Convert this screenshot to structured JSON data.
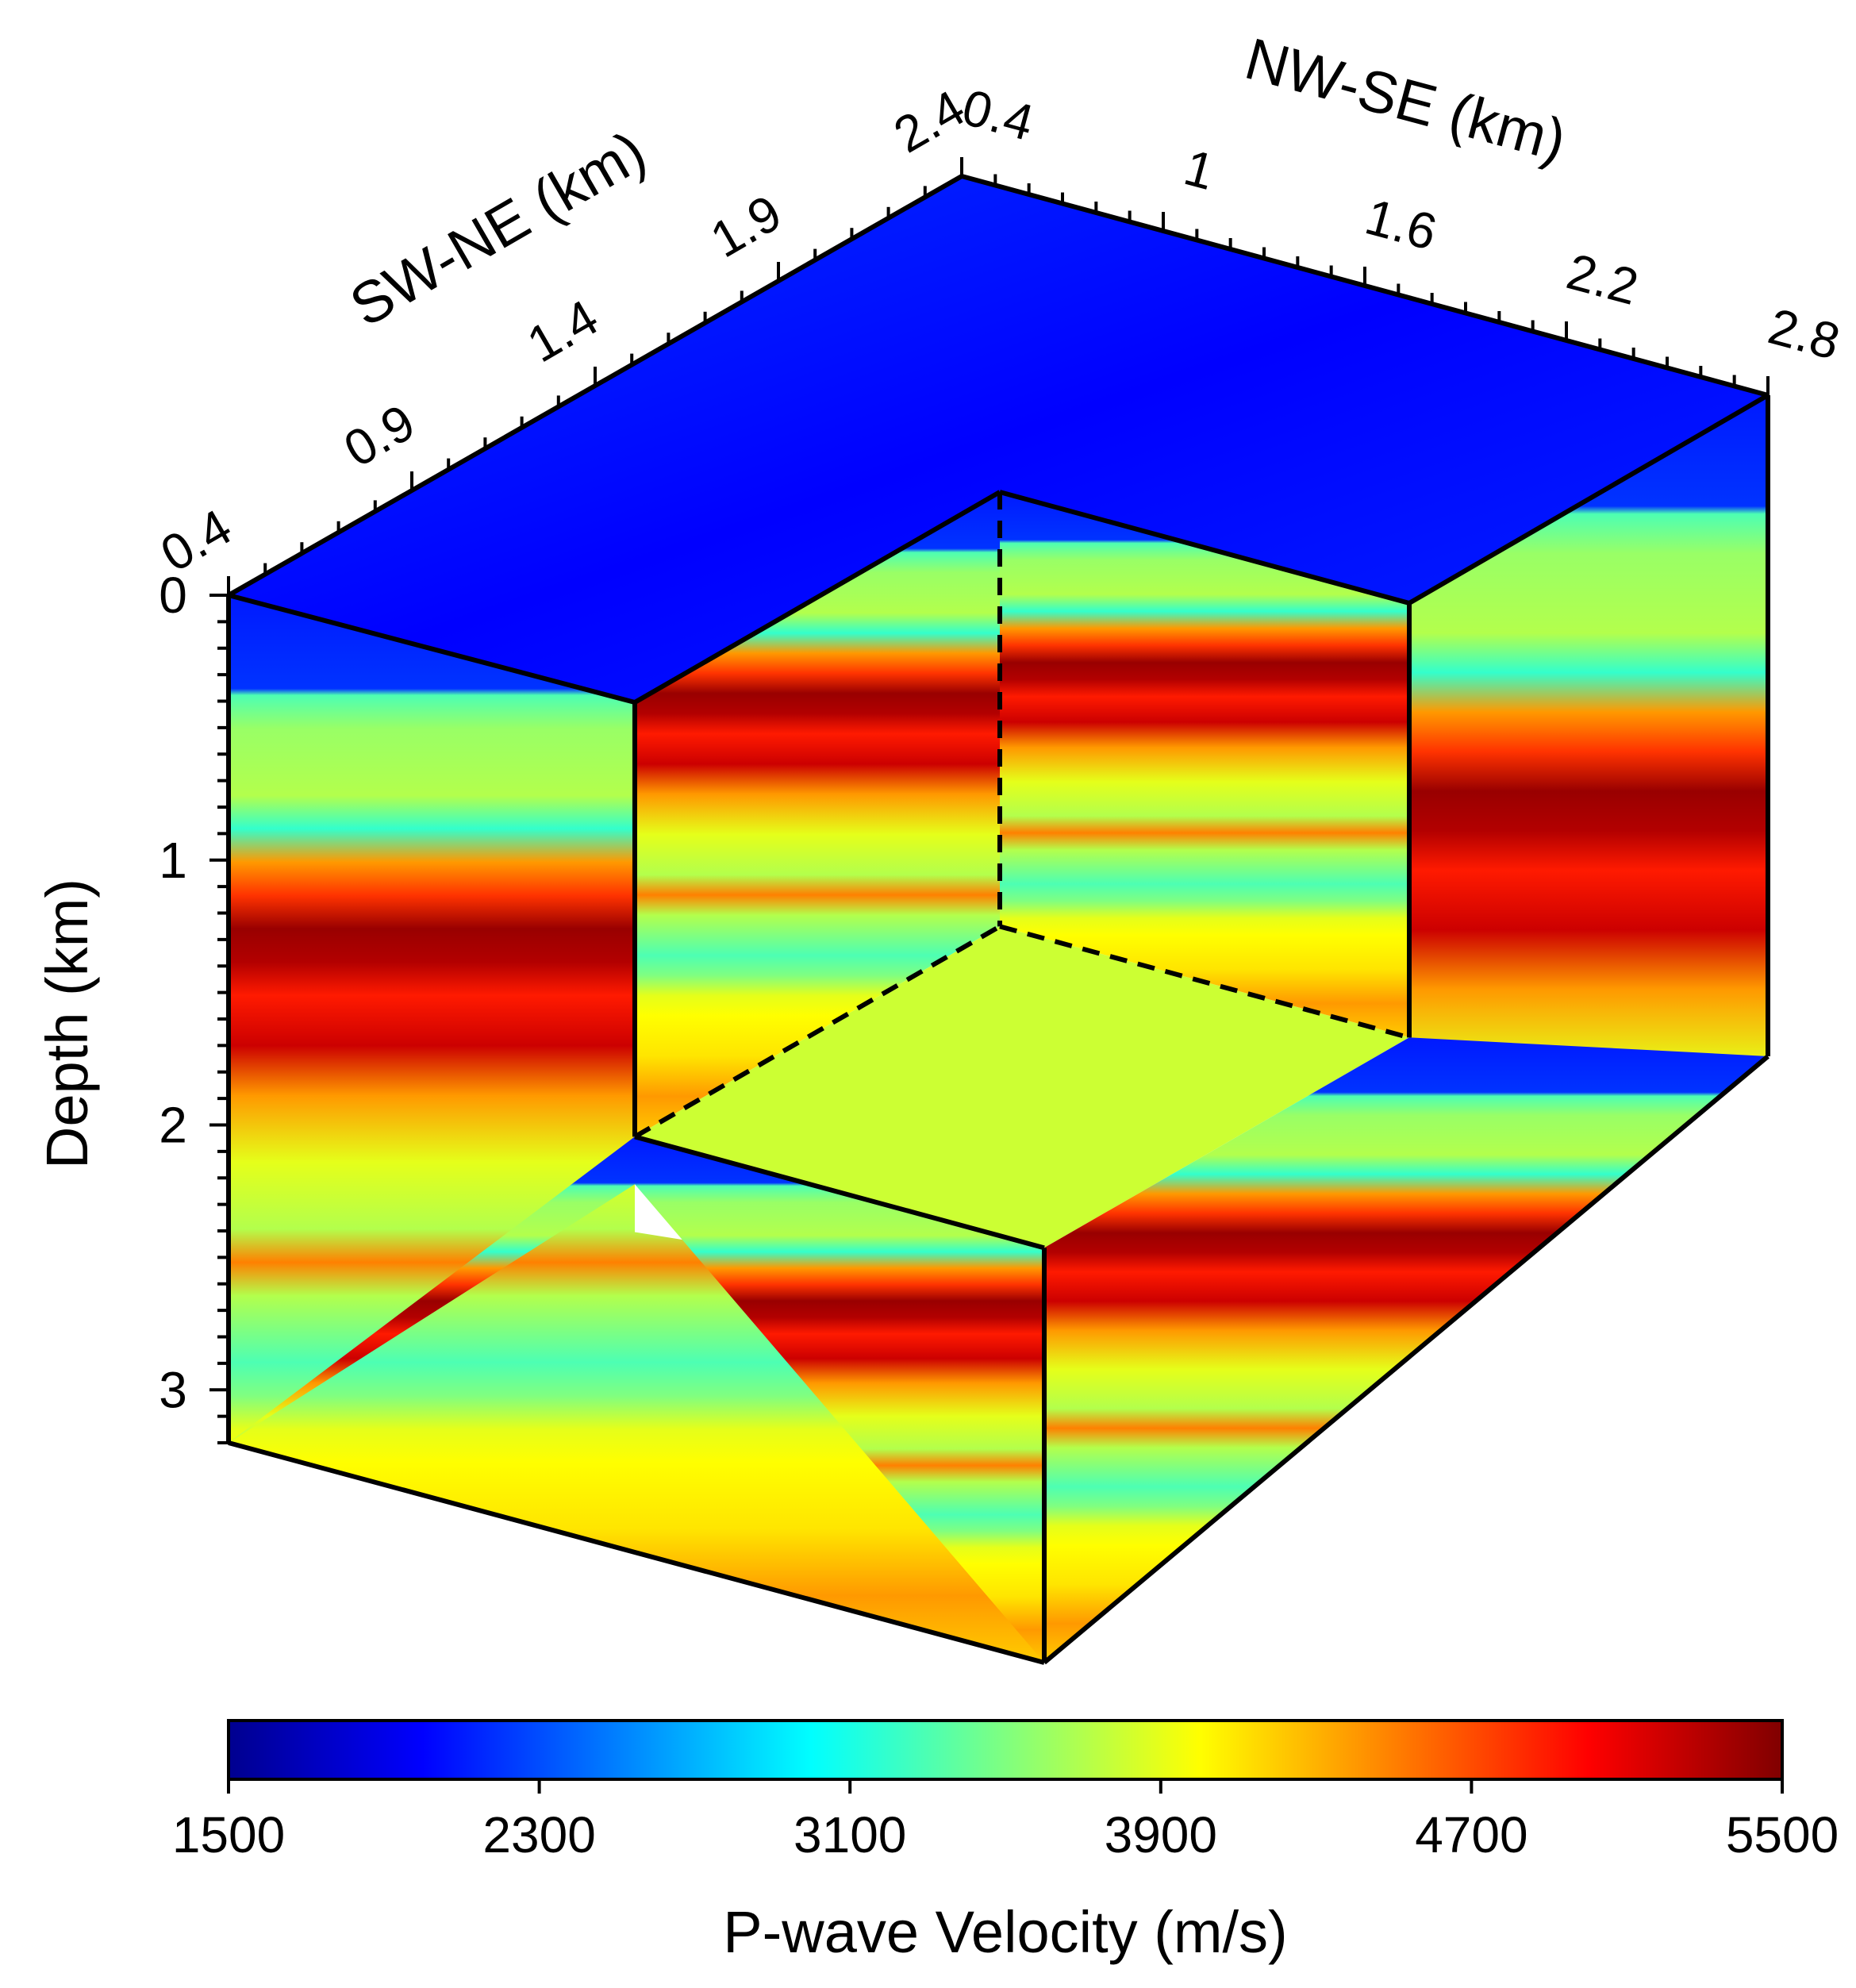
{
  "chart_data": {
    "type": "heatmap",
    "title": "",
    "axes": {
      "sw_ne": {
        "label": "SW-NE (km)",
        "ticks": [
          "0.4",
          "0.9",
          "1.4",
          "1.9",
          "2.4"
        ],
        "range": [
          0.4,
          2.4
        ]
      },
      "nw_se": {
        "label": "NW-SE (km)",
        "ticks": [
          "0.4",
          "1",
          "1.6",
          "2.2",
          "2.8"
        ],
        "range": [
          0.4,
          2.8
        ]
      },
      "depth": {
        "label": "Depth (km)",
        "ticks": [
          "0",
          "1",
          "2",
          "3"
        ],
        "range": [
          0,
          3.2
        ]
      }
    },
    "colorbar": {
      "label": "P-wave Velocity (m/s)",
      "ticks": [
        "1500",
        "2300",
        "3100",
        "3900",
        "4700",
        "5500"
      ],
      "range": [
        1500,
        5500
      ],
      "colormap": "jet"
    },
    "cutout": {
      "sw_ne_range": [
        1.4,
        2.4
      ],
      "nw_se_range": [
        0.4,
        1.6
      ],
      "depth_range": [
        0,
        2.0
      ],
      "floor_velocity": 3800
    },
    "velocity_profile": {
      "depth_km": [
        0.0,
        0.28,
        0.3,
        0.4,
        0.6,
        0.7,
        0.8,
        0.9,
        1.0,
        1.1,
        1.2,
        1.35,
        1.5,
        1.7,
        1.9,
        2.0,
        2.1,
        2.3,
        2.4,
        2.5,
        2.6,
        2.8,
        3.0,
        3.2
      ],
      "velocity_ms": [
        2100,
        2200,
        3300,
        3600,
        3700,
        3200,
        4400,
        4800,
        5400,
        5300,
        4900,
        5200,
        4400,
        3900,
        3700,
        4500,
        3700,
        3300,
        3500,
        3900,
        4000,
        4100,
        4400,
        4200
      ]
    }
  }
}
